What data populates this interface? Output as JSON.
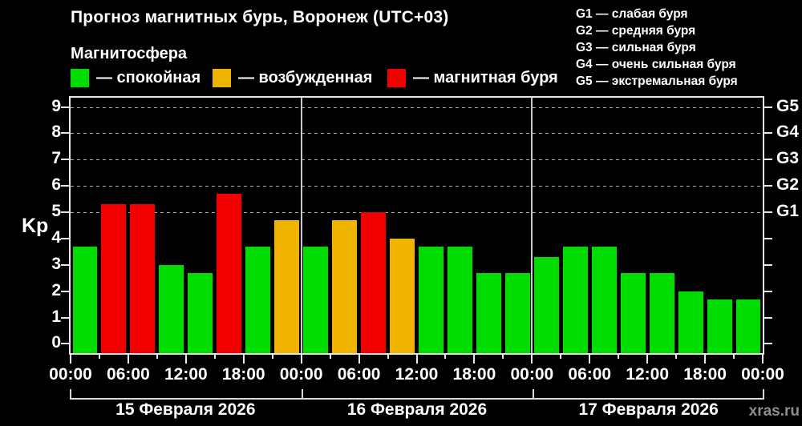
{
  "header": {
    "title": "Прогноз магнитных бурь, Воронеж (UTC+03)",
    "subtitle": "Магнитосфера"
  },
  "watermark": "xras.ru",
  "kp_legend": {
    "items": [
      {
        "label": "— спокойная",
        "status": "quiet"
      },
      {
        "label": "— возбужденная",
        "status": "excited"
      },
      {
        "label": "— магнитная буря",
        "status": "storm"
      }
    ]
  },
  "storm_scale_legend": [
    "G1 — слабая буря",
    "G2 — средняя буря",
    "G3 — сильная буря",
    "G4 — очень сильная буря",
    "G5 — экстремальная буря"
  ],
  "chart_data": {
    "type": "bar",
    "title": "Прогноз магнитных бурь, Воронеж (UTC+03)",
    "subtitle": "Магнитосфера",
    "ylabel": "Kp",
    "ylim": [
      0,
      9
    ],
    "y_ticks": [
      0,
      1,
      2,
      3,
      4,
      5,
      6,
      7,
      8,
      9
    ],
    "gridlines_at_kp": [
      5,
      6,
      7,
      8,
      9
    ],
    "grid": "dashed horizontal lines at storm levels G1-G5 only",
    "legend_position": "top-left",
    "bar_interval_hours": 3,
    "status_colors": {
      "quiet": "#00db00",
      "excited": "#f0b400",
      "storm": "#f20000"
    },
    "frame_color": "#e6e6e6",
    "background_color": "#000000",
    "right_axis": [
      {
        "kp": 5,
        "label": "G1"
      },
      {
        "kp": 6,
        "label": "G2"
      },
      {
        "kp": 7,
        "label": "G3"
      },
      {
        "kp": 8,
        "label": "G4"
      },
      {
        "kp": 9,
        "label": "G5"
      }
    ],
    "x_major_tick_labels": [
      "00:00",
      "06:00",
      "12:00",
      "18:00",
      "00:00",
      "06:00",
      "12:00",
      "18:00",
      "00:00",
      "06:00",
      "12:00",
      "18:00",
      "00:00"
    ],
    "days": [
      {
        "date": "15 Февраля 2026",
        "bars": [
          {
            "time": "00:00",
            "kp": 3.7,
            "status": "quiet"
          },
          {
            "time": "03:00",
            "kp": 5.3,
            "status": "storm"
          },
          {
            "time": "06:00",
            "kp": 5.3,
            "status": "storm"
          },
          {
            "time": "09:00",
            "kp": 3.0,
            "status": "quiet"
          },
          {
            "time": "12:00",
            "kp": 2.7,
            "status": "quiet"
          },
          {
            "time": "15:00",
            "kp": 5.7,
            "status": "storm"
          },
          {
            "time": "18:00",
            "kp": 3.7,
            "status": "quiet"
          },
          {
            "time": "21:00",
            "kp": 4.7,
            "status": "excited"
          }
        ]
      },
      {
        "date": "16 Февраля 2026",
        "bars": [
          {
            "time": "00:00",
            "kp": 3.7,
            "status": "quiet"
          },
          {
            "time": "03:00",
            "kp": 4.7,
            "status": "excited"
          },
          {
            "time": "06:00",
            "kp": 5.0,
            "status": "storm"
          },
          {
            "time": "09:00",
            "kp": 4.0,
            "status": "excited"
          },
          {
            "time": "12:00",
            "kp": 3.7,
            "status": "quiet"
          },
          {
            "time": "15:00",
            "kp": 3.7,
            "status": "quiet"
          },
          {
            "time": "18:00",
            "kp": 2.7,
            "status": "quiet"
          },
          {
            "time": "21:00",
            "kp": 2.7,
            "status": "quiet"
          }
        ]
      },
      {
        "date": "17 Февраля 2026",
        "bars": [
          {
            "time": "00:00",
            "kp": 3.3,
            "status": "quiet"
          },
          {
            "time": "03:00",
            "kp": 3.7,
            "status": "quiet"
          },
          {
            "time": "06:00",
            "kp": 3.7,
            "status": "quiet"
          },
          {
            "time": "09:00",
            "kp": 2.7,
            "status": "quiet"
          },
          {
            "time": "12:00",
            "kp": 2.7,
            "status": "quiet"
          },
          {
            "time": "15:00",
            "kp": 2.0,
            "status": "quiet"
          },
          {
            "time": "18:00",
            "kp": 1.7,
            "status": "quiet"
          },
          {
            "time": "21:00",
            "kp": 1.7,
            "status": "quiet"
          }
        ]
      }
    ]
  }
}
